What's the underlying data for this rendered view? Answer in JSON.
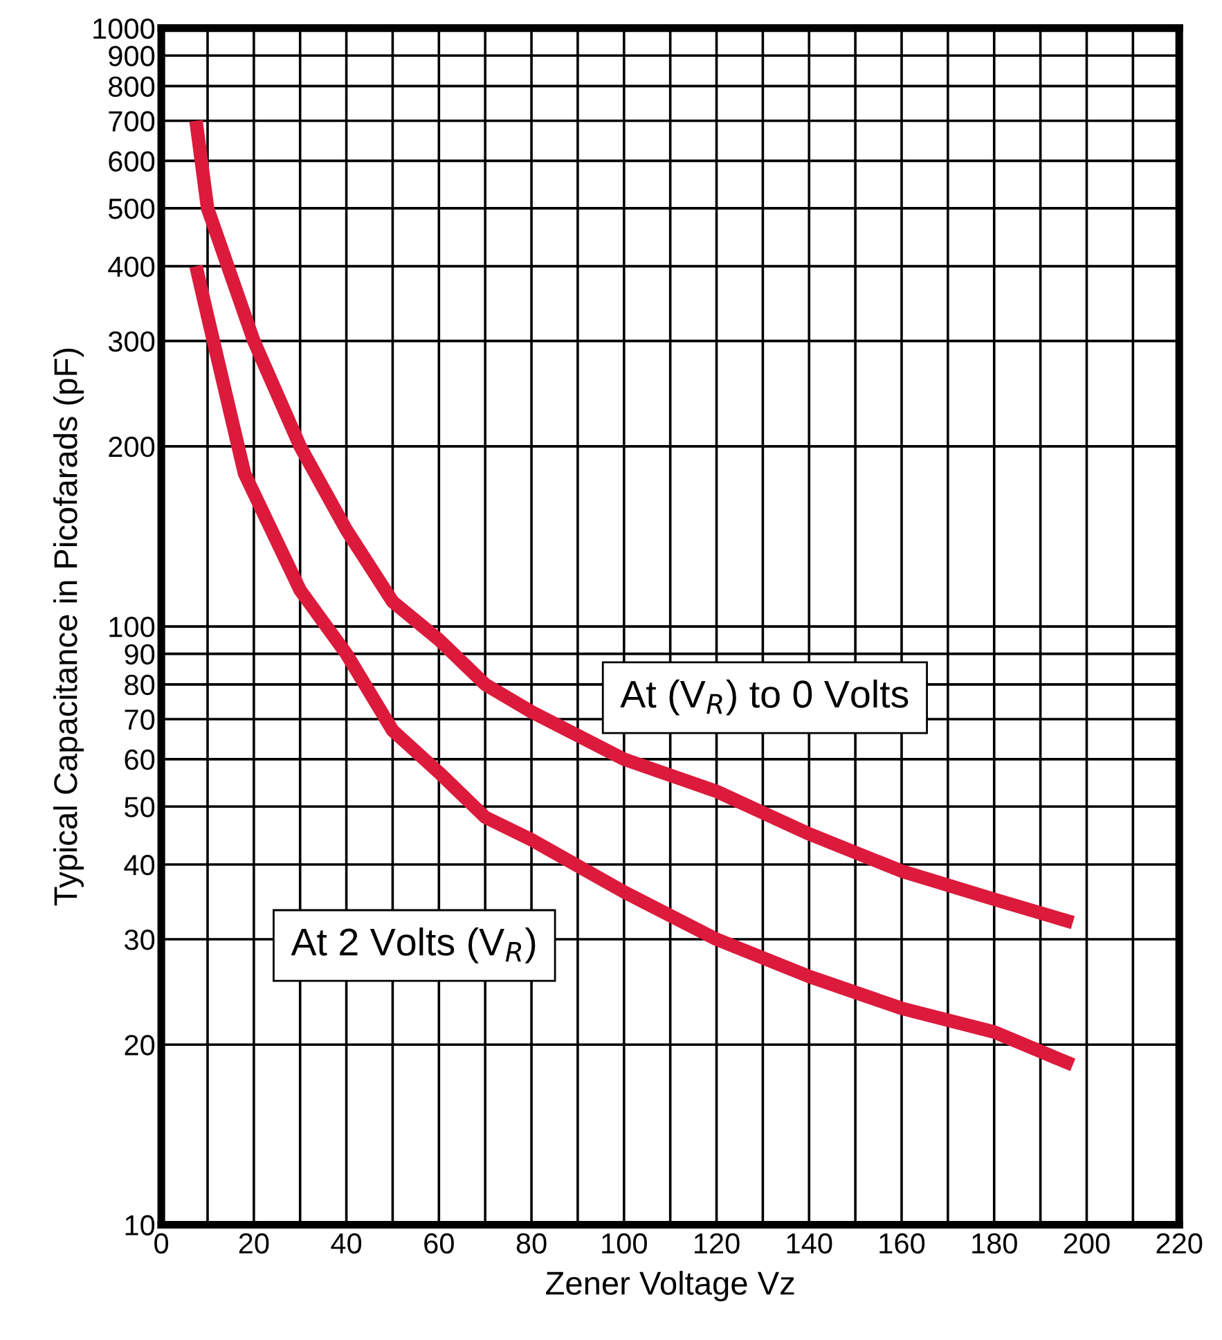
{
  "chart_data": {
    "type": "line",
    "xlabel": "Zener Voltage Vz",
    "ylabel": "Typical Capacitance in Picofarads (pF)",
    "log": "y",
    "grid": true,
    "legend": false,
    "marker": "none",
    "line_style": "solid",
    "xlim": [
      0,
      220
    ],
    "ylim": [
      10,
      1000
    ],
    "xticks": [
      0,
      {
        "value": 10,
        "label": null
      },
      20,
      {
        "value": 30,
        "label": null
      },
      40,
      {
        "value": 50,
        "label": null
      },
      60,
      {
        "value": 70,
        "label": null
      },
      80,
      {
        "value": 90,
        "label": null
      },
      100,
      {
        "value": 110,
        "label": null
      },
      120,
      {
        "value": 130,
        "label": null
      },
      140,
      {
        "value": 150,
        "label": null
      },
      160,
      {
        "value": 170,
        "label": null
      },
      180,
      {
        "value": 190,
        "label": null
      },
      200,
      {
        "value": 210,
        "label": null
      },
      220
    ],
    "yticks": [
      10,
      20,
      30,
      40,
      50,
      60,
      70,
      80,
      90,
      100,
      200,
      300,
      400,
      500,
      600,
      700,
      800,
      900,
      1000
    ],
    "series": [
      {
        "name": "At (V$_{R}$) to 0 Volts",
        "color": "#dc1a3c",
        "x": [
          7.5,
          10,
          20,
          30,
          40,
          50,
          60,
          70,
          80,
          100,
          120,
          140,
          160,
          180,
          197
        ],
        "values": [
          700,
          500,
          300,
          200,
          145,
          110,
          95,
          80,
          72,
          60,
          53,
          45,
          39,
          35,
          32
        ]
      },
      {
        "name": "At 2 Volts (V$_{R}$)",
        "color": "#dc1a3c",
        "x": [
          7.5,
          10,
          18,
          30,
          40,
          50,
          60,
          70,
          80,
          100,
          120,
          140,
          160,
          180,
          197
        ],
        "values": [
          400,
          330,
          180,
          115,
          90,
          67,
          57,
          48,
          44,
          36,
          30,
          26,
          23,
          21,
          18.5
        ]
      }
    ]
  }
}
